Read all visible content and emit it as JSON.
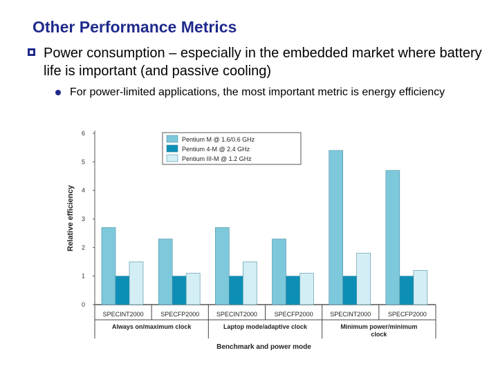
{
  "slide": {
    "title": "Other Performance Metrics",
    "bullet1": "Power consumption – especially in the embedded market where battery life is important (and passive cooling)",
    "bullet2": "For power-limited applications, the most important metric is energy efficiency"
  },
  "chart_data": {
    "type": "bar",
    "title": "",
    "xlabel": "Benchmark and power mode",
    "ylabel": "Relative efficiency",
    "ylim": [
      0,
      6
    ],
    "yticks": [
      "0",
      "1",
      "2",
      "3",
      "4",
      "5",
      "6"
    ],
    "categories": [
      "SPECINT2000",
      "SPECFP2000",
      "SPECINT2000",
      "SPECFP2000",
      "SPECINT2000",
      "SPECFP2000"
    ],
    "groups": [
      "Always on/maximum clock",
      "Laptop mode/adaptive clock",
      "Minimum power/minimum clock"
    ],
    "series": [
      {
        "name": "Pentium M @ 1.6/0.6 GHz",
        "color": "#7ec8dc",
        "values": [
          2.7,
          2.3,
          2.7,
          2.3,
          5.4,
          4.7
        ]
      },
      {
        "name": "Pentium 4-M @ 2.4 GHz",
        "color": "#0d8fb5",
        "values": [
          1.0,
          1.0,
          1.0,
          1.0,
          1.0,
          1.0
        ]
      },
      {
        "name": "Pentium III-M @ 1.2 GHz",
        "color": "#d3eef5",
        "values": [
          1.5,
          1.1,
          1.5,
          1.1,
          1.8,
          1.2
        ]
      }
    ],
    "legend_position": "top-left"
  }
}
